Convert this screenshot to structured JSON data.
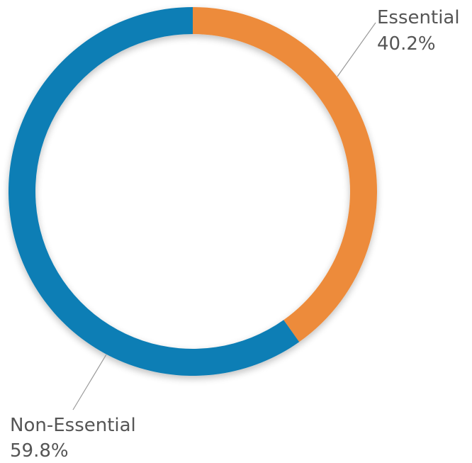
{
  "chart_data": {
    "type": "pie",
    "donut": true,
    "title": "",
    "start_angle_deg": 0,
    "direction": "clockwise",
    "slices": [
      {
        "name": "Essential",
        "value": 40.2,
        "value_label": "40.2%",
        "color": "#ED8B3A",
        "label_position": "top-right"
      },
      {
        "name": "Non-Essential",
        "value": 59.8,
        "value_label": "59.8%",
        "color": "#0B7EB5",
        "label_position": "bottom-left"
      }
    ],
    "legend": "none"
  }
}
